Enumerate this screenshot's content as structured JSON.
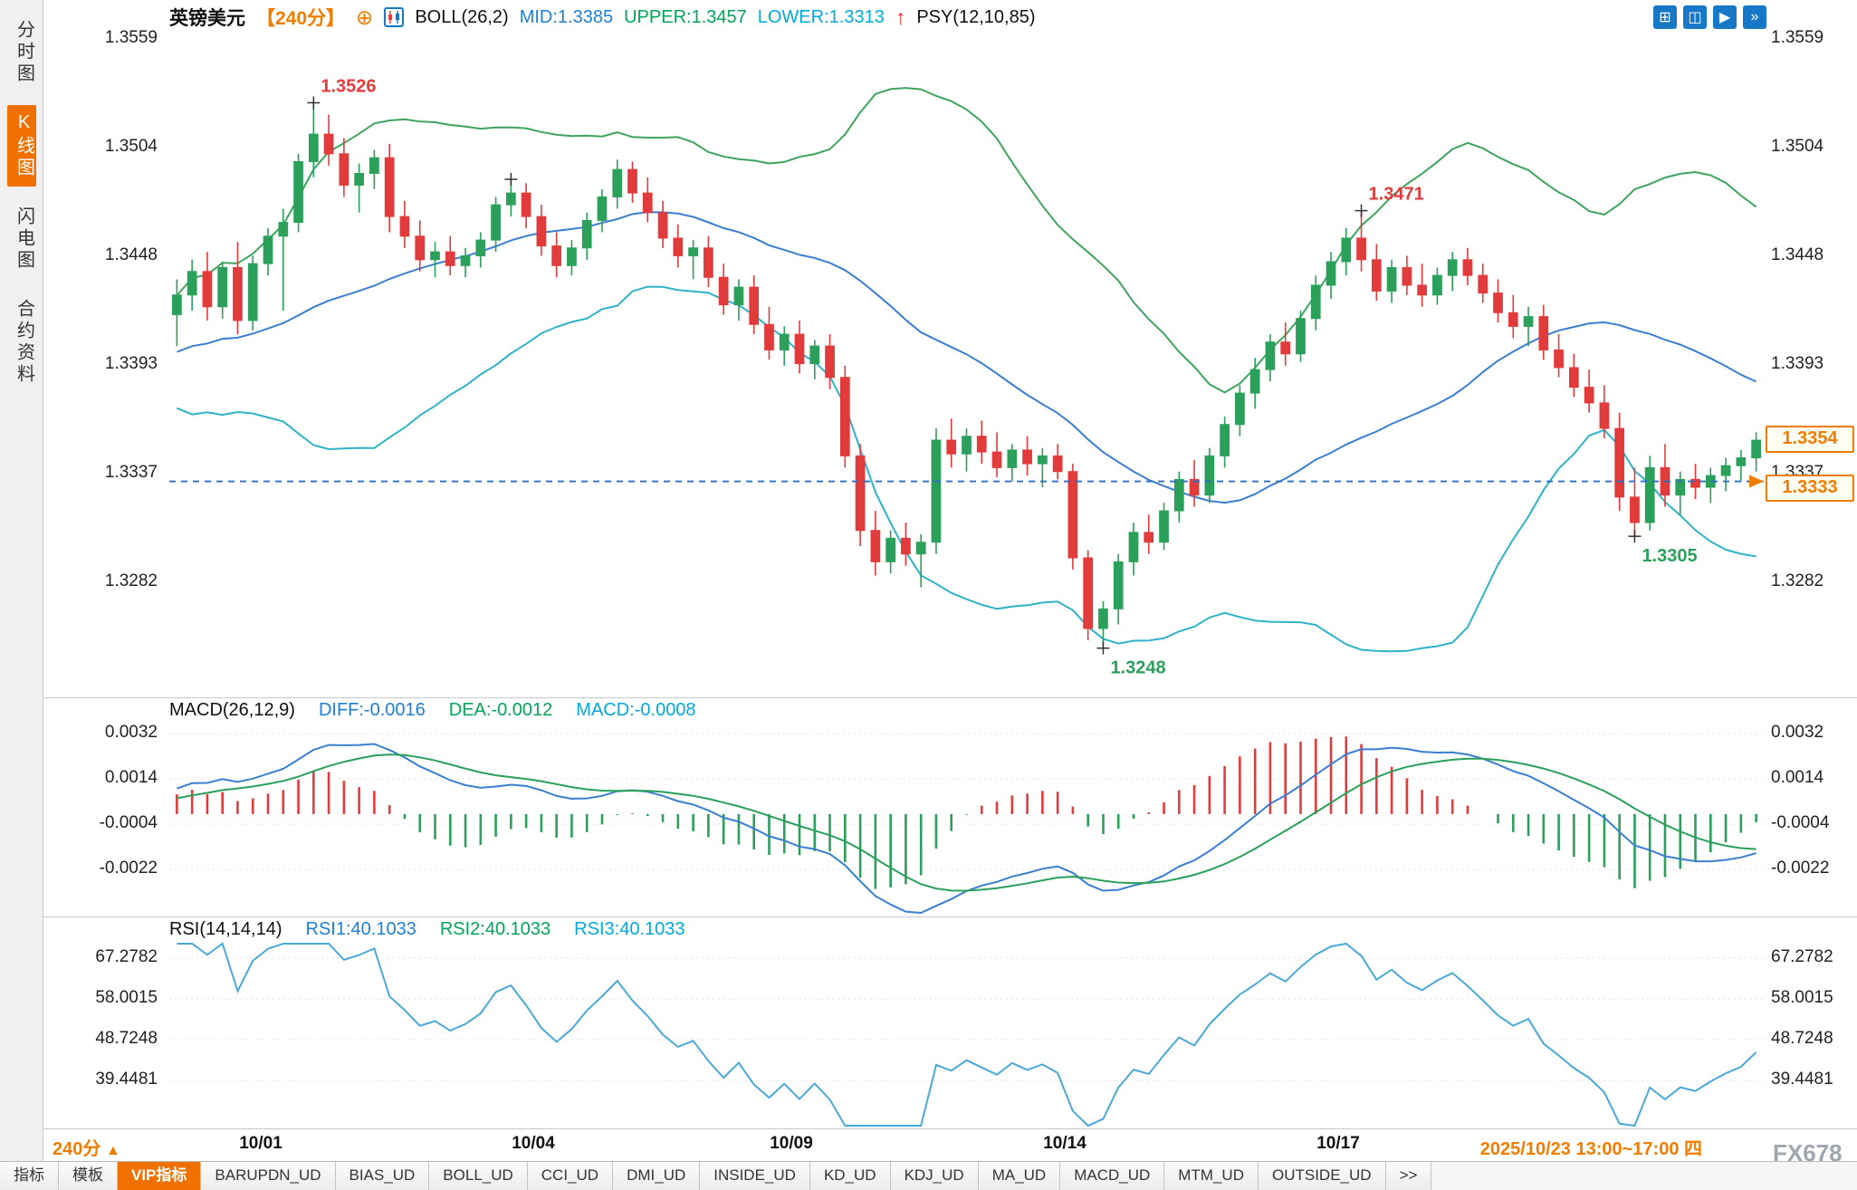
{
  "sidebar": {
    "items": [
      {
        "label": "分时图",
        "active": false
      },
      {
        "label": "K线图",
        "active": true
      },
      {
        "label": "闪电图",
        "active": false
      },
      {
        "label": "合约资料",
        "active": false
      }
    ]
  },
  "header": {
    "symbol": "英镑美元",
    "period": "【240分】",
    "add_icon": "⊕",
    "boll_label": "BOLL(26,2)",
    "mid": "MID:1.3385",
    "upper": "UPPER:1.3457",
    "lower": "LOWER:1.3313",
    "arrow": "↑",
    "psy": "PSY(12,10,85)",
    "toolbar_icons": [
      {
        "name": "layout-grid-icon",
        "glyph": "⊞"
      },
      {
        "name": "layout-split-icon",
        "glyph": "◫"
      },
      {
        "name": "play-icon",
        "glyph": "▶"
      },
      {
        "name": "next-icon",
        "glyph": "»"
      }
    ]
  },
  "macd_header": {
    "title": "MACD(26,12,9)",
    "diff": "DIFF:-0.0016",
    "dea": "DEA:-0.0012",
    "macd": "MACD:-0.0008"
  },
  "rsi_header": {
    "title": "RSI(14,14,14)",
    "rsi1": "RSI1:40.1033",
    "rsi2": "RSI2:40.1033",
    "rsi3": "RSI3:40.1033"
  },
  "axes": {
    "main_y": [
      "1.3559",
      "1.3504",
      "1.3448",
      "1.3393",
      "1.3337",
      "1.3282"
    ],
    "macd_y": [
      "0.0032",
      "0.0014",
      "-0.0004",
      "-0.0022"
    ],
    "rsi_y": [
      "67.2782",
      "58.0015",
      "48.7248",
      "39.4481"
    ],
    "x_ticks": [
      "10/01",
      "10/04",
      "10/09",
      "10/14",
      "10/17"
    ]
  },
  "price_tags": {
    "last": "1.3354",
    "ref": "1.3333"
  },
  "bottom": {
    "period": "240分",
    "period_arrow": "▲",
    "datetime": "2025/10/23 13:00~17:00 四",
    "watermark": "FX678",
    "tabs": [
      "指标",
      "模板",
      "VIP指标",
      "BARUPDN_UD",
      "BIAS_UD",
      "BOLL_UD",
      "CCI_UD",
      "DMI_UD",
      "INSIDE_UD",
      "KD_UD",
      "KDJ_UD",
      "MA_UD",
      "MACD_UD",
      "MTM_UD",
      "OUTSIDE_UD",
      ">>"
    ]
  },
  "colors": {
    "accent": "#f07d00",
    "up": "#2aa05a",
    "down": "#e23b3b",
    "boll_mid": "#3a7fd0",
    "boll_upper": "#3fa45f",
    "boll_lower": "#2fb3c8",
    "diff_line": "#3a7fd0",
    "dea_line": "#2aa05a",
    "rsi_line": "#4aa9d8",
    "ref_line": "#2f6fc0",
    "grid": "#e3e3e3",
    "marker": "#333333"
  },
  "chart_data": {
    "type": "candlestick+macd+rsi",
    "title": "英镑美元 240分 K线图 BOLL(26,2) PSY(12,10,85)",
    "main": {
      "type": "candlestick",
      "y_ticks": [
        1.3559,
        1.3504,
        1.3448,
        1.3393,
        1.3337,
        1.3282
      ],
      "reference_price": 1.3333,
      "last_price": 1.3354,
      "boll": {
        "period": 26,
        "mult": 2,
        "mid": 1.3385,
        "upper": 1.3457,
        "lower": 1.3313
      },
      "warmup_closes": [
        1.3378,
        1.3385,
        1.338,
        1.3392,
        1.3388,
        1.3398,
        1.3395,
        1.3405,
        1.34,
        1.3412,
        1.3408,
        1.3418
      ],
      "candles": [
        [
          1.3418,
          1.3436,
          1.3402,
          1.3428
        ],
        [
          1.3428,
          1.3446,
          1.342,
          1.344
        ],
        [
          1.344,
          1.345,
          1.3415,
          1.3422
        ],
        [
          1.3422,
          1.3445,
          1.3416,
          1.3442
        ],
        [
          1.3442,
          1.3455,
          1.3408,
          1.3415
        ],
        [
          1.3415,
          1.3448,
          1.341,
          1.3444
        ],
        [
          1.3444,
          1.3462,
          1.3438,
          1.3458
        ],
        [
          1.3458,
          1.3472,
          1.342,
          1.3465
        ],
        [
          1.3465,
          1.35,
          1.346,
          1.3496
        ],
        [
          1.3496,
          1.3526,
          1.3488,
          1.351
        ],
        [
          1.351,
          1.352,
          1.3494,
          1.35
        ],
        [
          1.35,
          1.3508,
          1.3478,
          1.3484
        ],
        [
          1.3484,
          1.3495,
          1.347,
          1.349
        ],
        [
          1.349,
          1.3502,
          1.3482,
          1.3498
        ],
        [
          1.3498,
          1.3505,
          1.346,
          1.3468
        ],
        [
          1.3468,
          1.3476,
          1.3452,
          1.3458
        ],
        [
          1.3458,
          1.3466,
          1.344,
          1.3446
        ],
        [
          1.3446,
          1.3455,
          1.3437,
          1.345
        ],
        [
          1.345,
          1.3458,
          1.3438,
          1.3443
        ],
        [
          1.3443,
          1.3452,
          1.3437,
          1.3448
        ],
        [
          1.3448,
          1.346,
          1.3442,
          1.3456
        ],
        [
          1.3456,
          1.3478,
          1.345,
          1.3474
        ],
        [
          1.3474,
          1.3487,
          1.3468,
          1.348
        ],
        [
          1.348,
          1.3485,
          1.3462,
          1.3468
        ],
        [
          1.3468,
          1.3474,
          1.3448,
          1.3453
        ],
        [
          1.3453,
          1.346,
          1.3437,
          1.3443
        ],
        [
          1.3443,
          1.3456,
          1.3438,
          1.3452
        ],
        [
          1.3452,
          1.347,
          1.3446,
          1.3466
        ],
        [
          1.3466,
          1.3482,
          1.346,
          1.3478
        ],
        [
          1.3478,
          1.3497,
          1.3472,
          1.3492
        ],
        [
          1.3492,
          1.3496,
          1.3475,
          1.348
        ],
        [
          1.348,
          1.3488,
          1.3465,
          1.347
        ],
        [
          1.347,
          1.3476,
          1.3452,
          1.3457
        ],
        [
          1.3457,
          1.3464,
          1.3442,
          1.3448
        ],
        [
          1.3448,
          1.3456,
          1.3436,
          1.3452
        ],
        [
          1.3452,
          1.3458,
          1.3432,
          1.3437
        ],
        [
          1.3437,
          1.3444,
          1.3418,
          1.3423
        ],
        [
          1.3423,
          1.3436,
          1.3415,
          1.3432
        ],
        [
          1.3432,
          1.3438,
          1.3408,
          1.3413
        ],
        [
          1.3413,
          1.3422,
          1.3395,
          1.34
        ],
        [
          1.34,
          1.3412,
          1.3392,
          1.3408
        ],
        [
          1.3408,
          1.3415,
          1.3388,
          1.3393
        ],
        [
          1.3393,
          1.3405,
          1.3385,
          1.3402
        ],
        [
          1.3402,
          1.3408,
          1.338,
          1.3386
        ],
        [
          1.3386,
          1.3392,
          1.334,
          1.3346
        ],
        [
          1.3346,
          1.3352,
          1.33,
          1.3308
        ],
        [
          1.3308,
          1.3318,
          1.3285,
          1.3292
        ],
        [
          1.3292,
          1.3308,
          1.3286,
          1.3304
        ],
        [
          1.3304,
          1.3312,
          1.329,
          1.3296
        ],
        [
          1.3296,
          1.3306,
          1.3279,
          1.3302
        ],
        [
          1.3302,
          1.336,
          1.3296,
          1.3354
        ],
        [
          1.3354,
          1.3365,
          1.334,
          1.3347
        ],
        [
          1.3347,
          1.336,
          1.3338,
          1.3356
        ],
        [
          1.3356,
          1.3364,
          1.3342,
          1.3348
        ],
        [
          1.3348,
          1.3358,
          1.3335,
          1.334
        ],
        [
          1.334,
          1.3352,
          1.3333,
          1.3349
        ],
        [
          1.3349,
          1.3356,
          1.3336,
          1.3342
        ],
        [
          1.3342,
          1.335,
          1.333,
          1.3346
        ],
        [
          1.3346,
          1.3352,
          1.3334,
          1.3338
        ],
        [
          1.3338,
          1.3342,
          1.3288,
          1.3294
        ],
        [
          1.3294,
          1.3298,
          1.3252,
          1.3258
        ],
        [
          1.3258,
          1.3272,
          1.3248,
          1.3268
        ],
        [
          1.3268,
          1.3296,
          1.326,
          1.3292
        ],
        [
          1.3292,
          1.3312,
          1.3285,
          1.3307
        ],
        [
          1.3307,
          1.3316,
          1.3296,
          1.3302
        ],
        [
          1.3302,
          1.3322,
          1.3298,
          1.3318
        ],
        [
          1.3318,
          1.3338,
          1.3312,
          1.3334
        ],
        [
          1.3334,
          1.3344,
          1.332,
          1.3326
        ],
        [
          1.3326,
          1.335,
          1.3322,
          1.3346
        ],
        [
          1.3346,
          1.3366,
          1.334,
          1.3362
        ],
        [
          1.3362,
          1.3382,
          1.3356,
          1.3378
        ],
        [
          1.3378,
          1.3396,
          1.337,
          1.339
        ],
        [
          1.339,
          1.3408,
          1.3384,
          1.3404
        ],
        [
          1.3404,
          1.3414,
          1.3392,
          1.3398
        ],
        [
          1.3398,
          1.342,
          1.3394,
          1.3416
        ],
        [
          1.3416,
          1.3438,
          1.341,
          1.3433
        ],
        [
          1.3433,
          1.345,
          1.3426,
          1.3445
        ],
        [
          1.3445,
          1.3462,
          1.3438,
          1.3457
        ],
        [
          1.3457,
          1.3471,
          1.344,
          1.3446
        ],
        [
          1.3446,
          1.3454,
          1.3425,
          1.343
        ],
        [
          1.343,
          1.3446,
          1.3424,
          1.3442
        ],
        [
          1.3442,
          1.3448,
          1.3428,
          1.3433
        ],
        [
          1.3433,
          1.3444,
          1.3422,
          1.3428
        ],
        [
          1.3428,
          1.3442,
          1.3423,
          1.3438
        ],
        [
          1.3438,
          1.345,
          1.343,
          1.3446
        ],
        [
          1.3446,
          1.3452,
          1.3433,
          1.3438
        ],
        [
          1.3438,
          1.3444,
          1.3424,
          1.3429
        ],
        [
          1.3429,
          1.3436,
          1.3414,
          1.3419
        ],
        [
          1.3419,
          1.3428,
          1.3406,
          1.3412
        ],
        [
          1.3412,
          1.3422,
          1.3402,
          1.3417
        ],
        [
          1.3417,
          1.3423,
          1.3395,
          1.34
        ],
        [
          1.34,
          1.3408,
          1.3386,
          1.3391
        ],
        [
          1.3391,
          1.3398,
          1.3376,
          1.3381
        ],
        [
          1.3381,
          1.339,
          1.3368,
          1.3373
        ],
        [
          1.3373,
          1.3382,
          1.3355,
          1.336
        ],
        [
          1.336,
          1.3368,
          1.3318,
          1.3325
        ],
        [
          1.3325,
          1.334,
          1.3305,
          1.3312
        ],
        [
          1.3312,
          1.3346,
          1.3308,
          1.334
        ],
        [
          1.334,
          1.3352,
          1.332,
          1.3326
        ],
        [
          1.3326,
          1.3338,
          1.3316,
          1.3334
        ],
        [
          1.3334,
          1.3342,
          1.3324,
          1.333
        ],
        [
          1.333,
          1.334,
          1.3322,
          1.3336
        ],
        [
          1.3336,
          1.3345,
          1.3328,
          1.3341
        ],
        [
          1.3341,
          1.3349,
          1.3333,
          1.3345
        ],
        [
          1.3345,
          1.3358,
          1.3338,
          1.3354
        ]
      ],
      "annotations": [
        {
          "idx": 9,
          "price": 1.3526,
          "label": "1.3526",
          "type": "high"
        },
        {
          "idx": 22,
          "price": 1.3487,
          "label": "",
          "type": "high"
        },
        {
          "idx": 78,
          "price": 1.3471,
          "label": "1.3471",
          "type": "high"
        },
        {
          "idx": 61,
          "price": 1.3248,
          "label": "1.3248",
          "type": "low"
        },
        {
          "idx": 96,
          "price": 1.3305,
          "label": "1.3305",
          "type": "low"
        }
      ]
    },
    "macd": {
      "type": "histogram+lines",
      "fast": 12,
      "slow": 26,
      "signal": 9,
      "diff": -0.0016,
      "dea": -0.0012,
      "macd": -0.0008,
      "y_ticks": [
        0.0032,
        0.0014,
        -0.0004,
        -0.0022
      ]
    },
    "rsi": {
      "type": "line",
      "periods": [
        14,
        14,
        14
      ],
      "values": [
        40.1033,
        40.1033,
        40.1033
      ],
      "y_ticks": [
        67.2782,
        58.0015,
        48.7248,
        39.4481
      ]
    },
    "x_ticks": [
      {
        "label": "10/01",
        "idx": 5.5
      },
      {
        "label": "10/04",
        "idx": 23.5
      },
      {
        "label": "10/09",
        "idx": 40.5
      },
      {
        "label": "10/14",
        "idx": 58.5
      },
      {
        "label": "10/17",
        "idx": 76.5
      }
    ]
  }
}
